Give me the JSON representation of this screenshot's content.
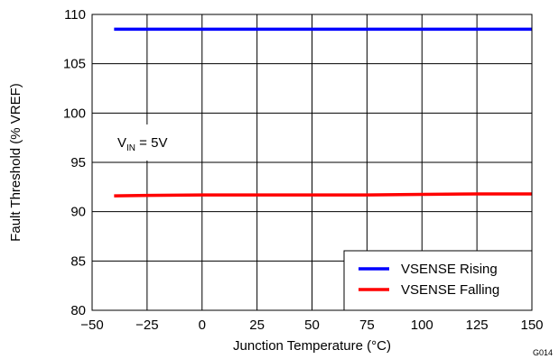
{
  "chart_data": {
    "type": "line",
    "xlabel": "Junction Temperature (°C)",
    "ylabel": "Fault Threshold (% VREF)",
    "xlim": [
      -50,
      150
    ],
    "ylim": [
      80,
      110
    ],
    "xticks": [
      -50,
      -25,
      0,
      25,
      50,
      75,
      100,
      125,
      150
    ],
    "yticks": [
      80,
      85,
      90,
      95,
      100,
      105,
      110
    ],
    "xtick_labels": [
      "−50",
      "−25",
      "0",
      "25",
      "50",
      "75",
      "100",
      "125",
      "150"
    ],
    "ytick_labels": [
      "80",
      "85",
      "90",
      "95",
      "100",
      "105",
      "110"
    ],
    "grid": true,
    "legend_position": "bottom-right",
    "series": [
      {
        "name": "VSENSE Rising",
        "color": "#0000ff",
        "x": [
          -40,
          -25,
          0,
          25,
          50,
          75,
          100,
          125,
          150
        ],
        "y": [
          108.5,
          108.5,
          108.5,
          108.5,
          108.5,
          108.5,
          108.5,
          108.5,
          108.5
        ]
      },
      {
        "name": "VSENSE Falling",
        "color": "#ff0000",
        "x": [
          -40,
          -25,
          0,
          25,
          50,
          75,
          100,
          125,
          150
        ],
        "y": [
          91.6,
          91.65,
          91.7,
          91.7,
          91.7,
          91.7,
          91.75,
          91.8,
          91.8
        ]
      }
    ],
    "annotation": {
      "base": "V",
      "subscript": "IN",
      "suffix": " = 5V"
    },
    "figure_id": "G014"
  }
}
